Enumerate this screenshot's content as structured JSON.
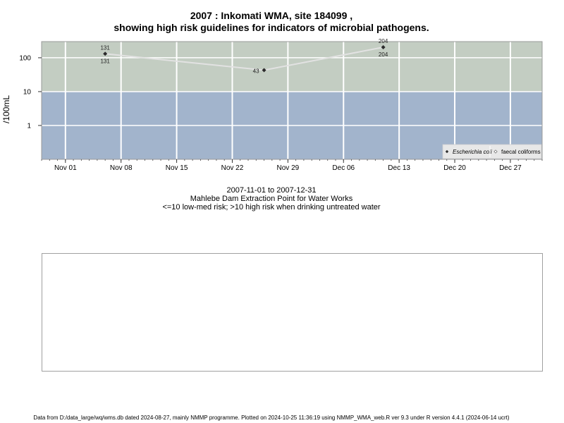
{
  "chart_data": {
    "type": "line",
    "title": "2007 : Inkomati WMA, site 184099 ,",
    "subtitle": "showing high risk guidelines for indicators of microbial pathogens.",
    "ylabel": "/100mL",
    "yscale": "log",
    "ylim": [
      0.1,
      300
    ],
    "yticks": [
      1,
      10,
      100
    ],
    "ytick_labels": [
      "1",
      "10",
      "100"
    ],
    "xlim": [
      "2007-10-29",
      "2007-12-31"
    ],
    "xticks": [
      "2007-11-01",
      "2007-11-08",
      "2007-11-15",
      "2007-11-22",
      "2007-11-29",
      "2007-12-06",
      "2007-12-13",
      "2007-12-20",
      "2007-12-27"
    ],
    "xtick_labels": [
      "Nov 01",
      "Nov 08",
      "Nov 15",
      "Nov 22",
      "Nov 29",
      "Dec 06",
      "Dec 13",
      "Dec 20",
      "Dec 27"
    ],
    "grid": true,
    "risk_bands": [
      {
        "from": 0.1,
        "to": 10,
        "color": "#a2b4cc",
        "meaning": "low-med risk"
      },
      {
        "from": 10,
        "to": 300,
        "color": "#c3cdc2",
        "meaning": "high risk"
      }
    ],
    "series": [
      {
        "name": "Escherichia coli",
        "marker": "filled-diamond",
        "color": "#2b2b2b",
        "line_color": "#e2e2e2",
        "x": [
          "2007-11-06",
          "2007-11-26",
          "2007-12-11"
        ],
        "values": [
          131,
          43,
          204
        ],
        "labels": [
          "131",
          "43",
          "204"
        ]
      },
      {
        "name": "faecal coliforms",
        "marker": "open-diamond",
        "color": "#ffffff",
        "x": [],
        "values": []
      }
    ],
    "point_labels_below": [
      {
        "x": "2007-11-06",
        "value": 131,
        "label": "131"
      },
      {
        "x": "2007-12-11",
        "value": 204,
        "label": "204"
      }
    ],
    "legend_placement": "bottom-right"
  },
  "caption": {
    "date_range": "2007-11-01 to 2007-12-31",
    "site_name": "Mahlebe Dam Extraction Point for Water Works",
    "risk_note": "<=10 low-med risk; >10 high risk when drinking untreated water"
  },
  "footer": "Data from D:/data_large/wq/wms.db dated 2024-08-27, mainly NMMP programme. Plotted on 2024-10-25 11:36:19 using NMMP_WMA_web.R ver 9.3 under R version 4.4.1 (2024-06-14 ucrt)",
  "colors": {
    "high_band": "#c3cdc2",
    "low_band": "#a2b4cc",
    "grid": "#ffffff",
    "legend_bg": "#e8e8e8"
  }
}
